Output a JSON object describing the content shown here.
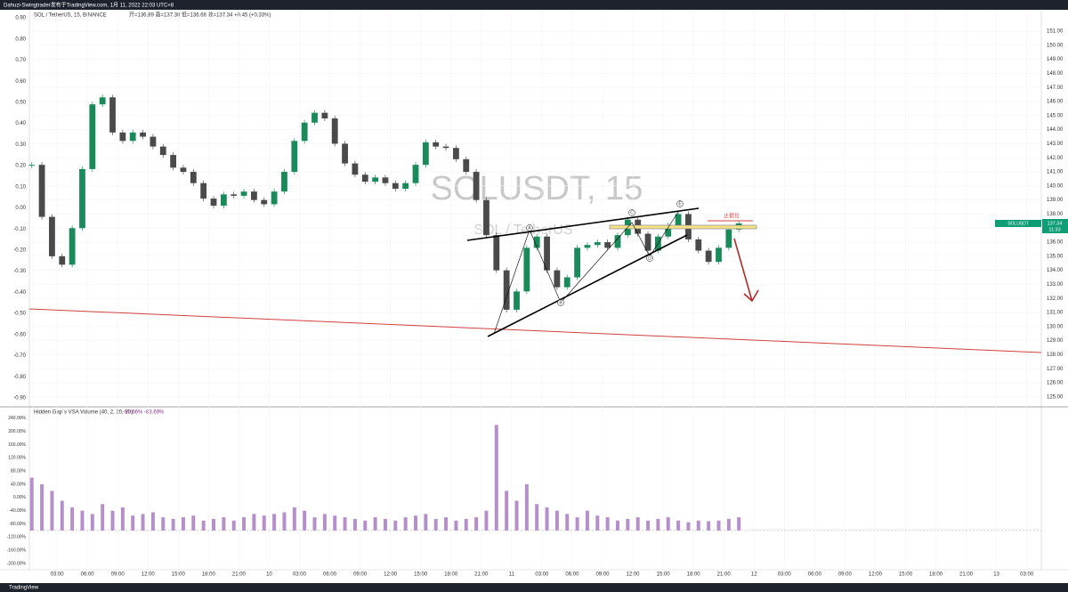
{
  "header": {
    "author_line": "Dahuzi-Swingtrader发布于TradingView.com, 1月 11, 2022 22:03 UTC+8"
  },
  "footer": {
    "brand": "TradingView"
  },
  "chart_data": [
    {
      "type": "candlestick",
      "title": "SOL / TetherUS, 15, BINANCE",
      "ohlc_line": "开=136.89 高=137.38 低=136.66 收=137.34 +0.45 (+0.33%)",
      "watermark": "SOLUSDT, 15",
      "watermark_sub": "SOL / TetherUS",
      "symbol": "SOLUSDT",
      "last_price": 137.34,
      "countdown": "11:33",
      "up_color": "#1b8a5a",
      "down_color": "#4a4a4a",
      "grid": true,
      "x": [
        0.5,
        1.5,
        2.5,
        3.5,
        4.5,
        5.5,
        6.5,
        7.5,
        8.5,
        9.5,
        10.5,
        11.5,
        12.5,
        13.5,
        14.5,
        15.5,
        16.5,
        17.5,
        18.5,
        19.5,
        20.5,
        21.5,
        22.5,
        23.5,
        24.5,
        25.5,
        26.5,
        27.5,
        28.5,
        29.5,
        30.5,
        31.5,
        32.5,
        33.5,
        34.5,
        35.5,
        36.5,
        37.5,
        38.5,
        39.5,
        40.5,
        41.5,
        42.5,
        43.5,
        44.5,
        45.5,
        46.5,
        47.5,
        48.5,
        49.5,
        50.5,
        51.5,
        52.5,
        53.5,
        54.5,
        55.5,
        56.5,
        57.5,
        58.5,
        59.5,
        60.5,
        61.5,
        62.5,
        63.5,
        64.5,
        65.5,
        66.5,
        67.5,
        68.5,
        69.5,
        70.5
      ],
      "values": [
        141.5,
        137.8,
        135.0,
        134.4,
        137.0,
        141.2,
        145.8,
        146.3,
        143.8,
        143.2,
        143.8,
        143.5,
        142.8,
        142.2,
        141.3,
        141.0,
        140.2,
        139.1,
        138.6,
        139.4,
        139.3,
        139.6,
        139.0,
        138.7,
        139.6,
        141.0,
        143.2,
        144.5,
        145.2,
        144.8,
        143.0,
        141.6,
        140.8,
        140.3,
        140.6,
        140.2,
        139.8,
        140.2,
        141.5,
        143.1,
        142.8,
        142.7,
        141.9,
        141.0,
        139.0,
        136.5,
        134.0,
        131.2,
        132.5,
        135.6,
        136.4,
        134.0,
        132.8,
        133.5,
        135.6,
        135.8,
        136.0,
        135.6,
        136.5,
        137.6,
        136.6,
        135.4,
        136.4,
        137.2,
        138.0,
        136.2,
        135.4,
        134.6,
        135.6,
        136.9,
        137.34
      ],
      "xlim": [
        0.26,
        100.44
      ],
      "xticks": [
        {
          "value": 3,
          "label": "03:00"
        },
        {
          "value": 6,
          "label": "06:00"
        },
        {
          "value": 9,
          "label": "09:00"
        },
        {
          "value": 12,
          "label": "12:00"
        },
        {
          "value": 15,
          "label": "15:00"
        },
        {
          "value": 18,
          "label": "18:00"
        },
        {
          "value": 21,
          "label": "21:00"
        },
        {
          "value": 24,
          "label": "10"
        },
        {
          "value": 27,
          "label": "03:00"
        },
        {
          "value": 30,
          "label": "06:00"
        },
        {
          "value": 33,
          "label": "09:00"
        },
        {
          "value": 36,
          "label": "12:00"
        },
        {
          "value": 39,
          "label": "15:00"
        },
        {
          "value": 42,
          "label": "18:00"
        },
        {
          "value": 45,
          "label": "21:00"
        },
        {
          "value": 48,
          "label": "11"
        },
        {
          "value": 51,
          "label": "03:00"
        },
        {
          "value": 54,
          "label": "06:00"
        },
        {
          "value": 57,
          "label": "09:00"
        },
        {
          "value": 60,
          "label": "12:00"
        },
        {
          "value": 63,
          "label": "15:00"
        },
        {
          "value": 66,
          "label": "18:00"
        },
        {
          "value": 69,
          "label": "21:00"
        },
        {
          "value": 72,
          "label": "12"
        },
        {
          "value": 75,
          "label": "03:00"
        },
        {
          "value": 78,
          "label": "06:00"
        },
        {
          "value": 81,
          "label": "09:00"
        },
        {
          "value": 84,
          "label": "12:00"
        },
        {
          "value": 87,
          "label": "15:00"
        },
        {
          "value": 90,
          "label": "18:00"
        },
        {
          "value": 93,
          "label": "21:00"
        },
        {
          "value": 96,
          "label": "13"
        },
        {
          "value": 99,
          "label": "03:00"
        }
      ],
      "ylim": [
        124.42,
        152.46
      ],
      "yticks": [
        {
          "value": 151,
          "label": "151.00"
        },
        {
          "value": 150,
          "label": "150.00"
        },
        {
          "value": 149,
          "label": "149.00"
        },
        {
          "value": 148,
          "label": "148.00"
        },
        {
          "value": 147,
          "label": "147.00"
        },
        {
          "value": 146,
          "label": "146.00"
        },
        {
          "value": 145,
          "label": "145.00"
        },
        {
          "value": 144,
          "label": "144.00"
        },
        {
          "value": 143,
          "label": "143.00"
        },
        {
          "value": 142,
          "label": "142.00"
        },
        {
          "value": 141,
          "label": "141.00"
        },
        {
          "value": 140,
          "label": "140.00"
        },
        {
          "value": 139,
          "label": "139.00"
        },
        {
          "value": 138,
          "label": "138.00"
        },
        {
          "value": 137,
          "label": "137.00"
        },
        {
          "value": 136,
          "label": "136.00"
        },
        {
          "value": 135,
          "label": "135.00"
        },
        {
          "value": 134,
          "label": "134.00"
        },
        {
          "value": 133,
          "label": "133.00"
        },
        {
          "value": 132,
          "label": "132.00"
        },
        {
          "value": 131,
          "label": "131.00"
        },
        {
          "value": 130,
          "label": "130.00"
        },
        {
          "value": 129,
          "label": "129.00"
        },
        {
          "value": 128,
          "label": "128.00"
        },
        {
          "value": 127,
          "label": "127.00"
        },
        {
          "value": 126,
          "label": "126.00"
        },
        {
          "value": 125,
          "label": "125.00"
        }
      ],
      "y2lim": [
        -0.934,
        0.934
      ],
      "y2ticks": [
        {
          "value": 0.9,
          "label": "0.90"
        },
        {
          "value": 0.8,
          "label": "0.80"
        },
        {
          "value": 0.7,
          "label": "0.70"
        },
        {
          "value": 0.6,
          "label": "0.60"
        },
        {
          "value": 0.5,
          "label": "0.50"
        },
        {
          "value": 0.4,
          "label": "0.40"
        },
        {
          "value": 0.3,
          "label": "0.30"
        },
        {
          "value": 0.2,
          "label": "0.20"
        },
        {
          "value": 0.1,
          "label": "0.10"
        },
        {
          "value": 0,
          "label": "0.00"
        },
        {
          "value": -0.1,
          "label": "-0.10"
        },
        {
          "value": -0.2,
          "label": "-0.20"
        },
        {
          "value": -0.3,
          "label": "-0.30"
        },
        {
          "value": -0.4,
          "label": "-0.40"
        },
        {
          "value": -0.5,
          "label": "-0.50"
        },
        {
          "value": -0.6,
          "label": "-0.60"
        },
        {
          "value": -0.7,
          "label": "-0.70"
        },
        {
          "value": -0.8,
          "label": "-0.80"
        },
        {
          "value": -0.9,
          "label": "-0.90"
        }
      ],
      "annotations": [
        {
          "text": "A"
        },
        {
          "text": "B"
        },
        {
          "text": "C"
        },
        {
          "text": "D"
        },
        {
          "text": "E"
        },
        {
          "text": "止损位"
        }
      ]
    },
    {
      "type": "bar",
      "title": "Hidden Gap`s VSA Volume (40, 2, 20, 20)",
      "stats": "-90.66% -83.69%",
      "color": "#b58fc9",
      "bar_base": -100,
      "values": [
        60,
        40,
        20,
        -10,
        -30,
        -40,
        -50,
        -20,
        -40,
        -30,
        -55,
        -50,
        -45,
        -60,
        -65,
        -60,
        -55,
        -70,
        -65,
        -60,
        -70,
        -60,
        -50,
        -55,
        -50,
        -45,
        -30,
        -40,
        -60,
        -50,
        -55,
        -60,
        -65,
        -70,
        -60,
        -65,
        -70,
        -60,
        -55,
        -50,
        -65,
        -60,
        -70,
        -65,
        -60,
        -40,
        220,
        20,
        -10,
        40,
        -20,
        -30,
        -40,
        -50,
        -60,
        -40,
        -55,
        -60,
        -70,
        -65,
        -60,
        -70,
        -65,
        -60,
        -70,
        -75,
        -70,
        -72,
        -70,
        -65,
        -60
      ],
      "ylim": [
        -219,
        272
      ],
      "yticks": [
        {
          "value": 240,
          "label": "240.00%"
        },
        {
          "value": 200,
          "label": "200.00%"
        },
        {
          "value": 160,
          "label": "160.00%"
        },
        {
          "value": 120,
          "label": "120.00%"
        },
        {
          "value": 80,
          "label": "80.00%"
        },
        {
          "value": 40,
          "label": "40.00%"
        },
        {
          "value": 0,
          "label": "0.00%"
        },
        {
          "value": -40,
          "label": "-40.00%"
        },
        {
          "value": -80,
          "label": "-80.00%"
        },
        {
          "value": -120,
          "label": "-120.00%"
        },
        {
          "value": -160,
          "label": "-160.00%"
        },
        {
          "value": -200,
          "label": "-200.00%"
        }
      ]
    }
  ]
}
